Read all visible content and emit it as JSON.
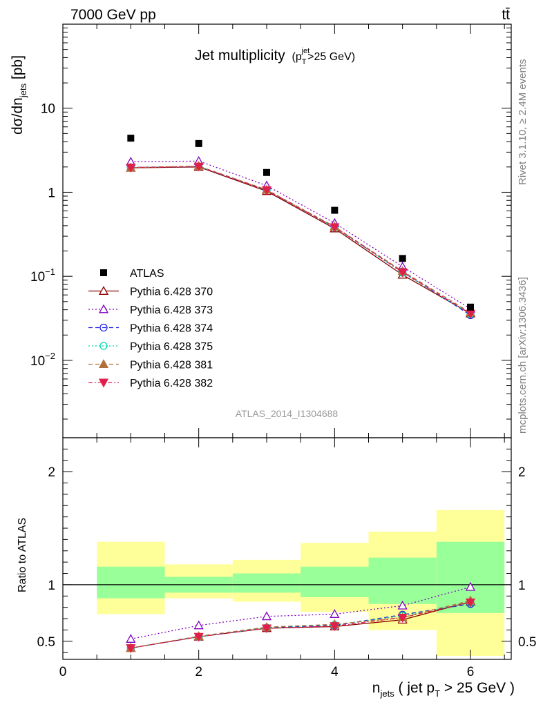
{
  "header": {
    "energy_label": "7000 GeV pp",
    "process_label": "tt̄"
  },
  "side_labels": {
    "rivet": "Rivet 3.1.10, ≥ 2.4M events",
    "mcplots": "mcplots.cern.ch [arXiv:1306.3436]"
  },
  "chart_data": [
    {
      "type": "line",
      "title": "Jet multiplicity",
      "title_sub": "(p",
      "title_sub_T": "T",
      "title_sub_jet": "jet",
      "title_sub_rest": ">25 GeV)",
      "ylabel": "dσ/dn",
      "ylabel_sub": "jets",
      "ylabel_unit": " [pb]",
      "yscale": "log",
      "ylim": [
        0.0012,
        100
      ],
      "xlim": [
        0,
        6.6
      ],
      "y_ticks": [
        {
          "v": 10,
          "base": "10",
          "exp": ""
        },
        {
          "v": 1,
          "base": "1",
          "exp": ""
        },
        {
          "v": 0.1,
          "base": "10",
          "exp": "−1"
        },
        {
          "v": 0.01,
          "base": "10",
          "exp": "−2"
        }
      ],
      "watermark": "ATLAS_2014_I1304688",
      "x": [
        1,
        2,
        3,
        4,
        5,
        6
      ],
      "data_series": {
        "name": "ATLAS",
        "values": [
          4.4,
          3.8,
          1.72,
          0.61,
          0.163,
          0.043
        ]
      },
      "series": [
        {
          "name": "Pythia 6.428 370",
          "values": [
            1.95,
            2.0,
            1.03,
            0.37,
            0.104,
            0.036
          ],
          "color": "#8b0000",
          "dash": "",
          "marker": "triangle-open"
        },
        {
          "name": "Pythia 6.428 373",
          "values": [
            2.3,
            2.35,
            1.2,
            0.43,
            0.13,
            0.041
          ],
          "color": "#8000c0",
          "dash": "2,3",
          "marker": "triangle-open"
        },
        {
          "name": "Pythia 6.428 374",
          "values": [
            1.98,
            2.02,
            1.06,
            0.385,
            0.114,
            0.0345
          ],
          "color": "#2020e0",
          "dash": "6,4",
          "marker": "circle-open"
        },
        {
          "name": "Pythia 6.428 375",
          "values": [
            1.98,
            2.02,
            1.06,
            0.38,
            0.11,
            0.0355
          ],
          "color": "#00d8b0",
          "dash": "2,3",
          "marker": "circle-open"
        },
        {
          "name": "Pythia 6.428 381",
          "values": [
            1.96,
            2.05,
            1.07,
            0.39,
            0.115,
            0.037
          ],
          "color": "#b0703a",
          "dash": "6,4",
          "marker": "triangle-filled"
        },
        {
          "name": "Pythia 6.428 382",
          "values": [
            1.97,
            2.03,
            1.06,
            0.385,
            0.112,
            0.036
          ],
          "color": "#e0204a",
          "dash": "6,3,2,3",
          "marker": "triangle-down-filled"
        }
      ]
    },
    {
      "type": "line",
      "ylabel": "Ratio to ATLAS",
      "xlabel_pre": "n",
      "xlabel_sub": "jets",
      "xlabel_mid": " ( jet p",
      "xlabel_sub2": "T",
      "xlabel_post": " > 25 GeV )",
      "ylim": [
        0.34,
        2.3
      ],
      "xlim": [
        0,
        6.6
      ],
      "y_ticks": [
        "0.5",
        "1",
        "2"
      ],
      "x_ticks": [
        "0",
        "2",
        "4",
        "6"
      ],
      "x": [
        1,
        2,
        3,
        4,
        5,
        6
      ],
      "bands": [
        {
          "x0": 0.5,
          "x1": 1.5,
          "inner": [
            0.88,
            1.16
          ],
          "outer": [
            0.74,
            1.38
          ]
        },
        {
          "x0": 1.5,
          "x1": 2.5,
          "inner": [
            0.93,
            1.07
          ],
          "outer": [
            0.88,
            1.18
          ]
        },
        {
          "x0": 2.5,
          "x1": 3.5,
          "inner": [
            0.93,
            1.1
          ],
          "outer": [
            0.85,
            1.22
          ]
        },
        {
          "x0": 3.5,
          "x1": 4.5,
          "inner": [
            0.89,
            1.16
          ],
          "outer": [
            0.76,
            1.37
          ]
        },
        {
          "x0": 4.5,
          "x1": 5.5,
          "inner": [
            0.83,
            1.24
          ],
          "outer": [
            0.6,
            1.47
          ]
        },
        {
          "x0": 5.5,
          "x1": 6.5,
          "inner": [
            0.75,
            1.38
          ],
          "outer": [
            0.37,
            1.66
          ]
        }
      ],
      "series": [
        {
          "name": "Pythia 6.428 370",
          "values": [
            0.44,
            0.54,
            0.615,
            0.63,
            0.69,
            0.85
          ]
        },
        {
          "name": "Pythia 6.428 373",
          "values": [
            0.52,
            0.64,
            0.72,
            0.74,
            0.815,
            0.98
          ]
        },
        {
          "name": "Pythia 6.428 374",
          "values": [
            0.44,
            0.54,
            0.62,
            0.64,
            0.735,
            0.83
          ]
        },
        {
          "name": "Pythia 6.428 375",
          "values": [
            0.44,
            0.54,
            0.62,
            0.645,
            0.725,
            0.84
          ]
        },
        {
          "name": "Pythia 6.428 381",
          "values": [
            0.44,
            0.545,
            0.625,
            0.65,
            0.71,
            0.86
          ]
        },
        {
          "name": "Pythia 6.428 382",
          "values": [
            0.44,
            0.54,
            0.615,
            0.635,
            0.71,
            0.845
          ]
        }
      ]
    }
  ]
}
